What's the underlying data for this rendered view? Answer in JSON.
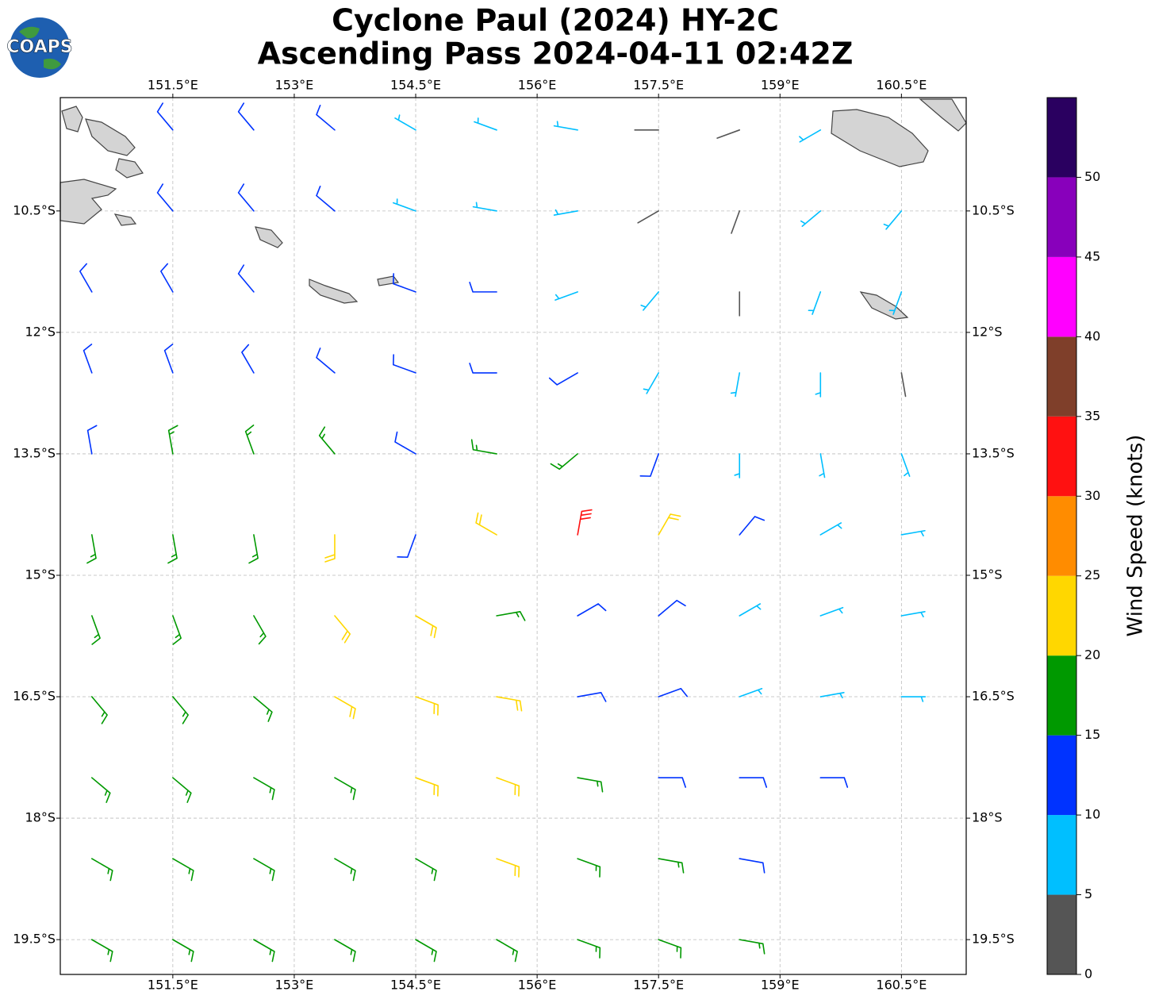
{
  "chart_data": {
    "type": "wind-barbs",
    "title": [
      "Cyclone Paul (2024) HY-2C",
      "Ascending Pass 2024-04-11 02:42Z"
    ],
    "logo": "COAPS",
    "xlim": [
      150.11,
      161.3
    ],
    "ylim": [
      -19.93,
      -9.1
    ],
    "xticks": [
      {
        "value": 151.5,
        "label": "151.5°E"
      },
      {
        "value": 153,
        "label": "153°E"
      },
      {
        "value": 154.5,
        "label": "154.5°E"
      },
      {
        "value": 156,
        "label": "156°E"
      },
      {
        "value": 157.5,
        "label": "157.5°E"
      },
      {
        "value": 159,
        "label": "159°E"
      },
      {
        "value": 160.5,
        "label": "160.5°E"
      }
    ],
    "yticks": [
      {
        "value": -10.5,
        "label": "10.5°S"
      },
      {
        "value": -12,
        "label": "12°S"
      },
      {
        "value": -13.5,
        "label": "13.5°S"
      },
      {
        "value": -15,
        "label": "15°S"
      },
      {
        "value": -16.5,
        "label": "16.5°S"
      },
      {
        "value": -18,
        "label": "18°S"
      },
      {
        "value": -19.5,
        "label": "19.5°S"
      }
    ],
    "grid": true,
    "lons": [
      150.5,
      151.5,
      152.5,
      153.5,
      154.5,
      155.5,
      156.5,
      157.5,
      158.5,
      159.5,
      160.5
    ],
    "lats": [
      -9.5,
      -10.5,
      -11.5,
      -12.5,
      -13.5,
      -14.5,
      -15.5,
      -16.5,
      -17.5,
      -18.5,
      -19.5
    ],
    "speed": [
      [
        null,
        12,
        13,
        12,
        8,
        8,
        7,
        4,
        3,
        9,
        null
      ],
      [
        null,
        12,
        13,
        12,
        9,
        8,
        7,
        4,
        3,
        8,
        8
      ],
      [
        12,
        12,
        13,
        null,
        12,
        12,
        9,
        7,
        3,
        8,
        8
      ],
      [
        12,
        13,
        14,
        12,
        12,
        13,
        12,
        8,
        8,
        8,
        4
      ],
      [
        13,
        17,
        17,
        17,
        12,
        16,
        18,
        12,
        8,
        8,
        8
      ],
      [
        17,
        17,
        18,
        22,
        13,
        22,
        32,
        22,
        12,
        8,
        8
      ],
      [
        17,
        17,
        18,
        22,
        22,
        18,
        13,
        12,
        8,
        8,
        8
      ],
      [
        17,
        17,
        17,
        22,
        22,
        20,
        13,
        12,
        9,
        8,
        9
      ],
      [
        17,
        17,
        17,
        18,
        22,
        22,
        19,
        14,
        12,
        10,
        null
      ],
      [
        17,
        17,
        17,
        17,
        18,
        20,
        19,
        17,
        14,
        null,
        null
      ],
      [
        16,
        16,
        17,
        17,
        17,
        17,
        17,
        16,
        17,
        null,
        null
      ]
    ],
    "direction": [
      [
        null,
        320,
        320,
        310,
        300,
        290,
        280,
        270,
        250,
        240,
        null
      ],
      [
        null,
        320,
        320,
        310,
        290,
        280,
        260,
        240,
        200,
        230,
        220
      ],
      [
        330,
        330,
        320,
        null,
        290,
        270,
        250,
        220,
        180,
        200,
        200
      ],
      [
        340,
        340,
        330,
        310,
        290,
        270,
        240,
        210,
        190,
        180,
        170
      ],
      [
        350,
        350,
        340,
        320,
        300,
        280,
        230,
        200,
        180,
        170,
        160
      ],
      [
        170,
        170,
        170,
        180,
        200,
        300,
        10,
        30,
        40,
        60,
        80
      ],
      [
        160,
        160,
        150,
        140,
        120,
        80,
        60,
        50,
        60,
        70,
        80
      ],
      [
        140,
        140,
        130,
        120,
        110,
        100,
        80,
        70,
        70,
        80,
        90
      ],
      [
        130,
        130,
        120,
        120,
        110,
        110,
        100,
        90,
        90,
        90,
        null
      ],
      [
        120,
        120,
        120,
        120,
        120,
        110,
        110,
        100,
        100,
        null,
        null
      ],
      [
        120,
        120,
        120,
        120,
        120,
        120,
        110,
        110,
        100,
        null,
        null
      ]
    ],
    "colorbar": {
      "label": "Wind Speed (knots)",
      "lim": [
        0,
        55
      ],
      "ticks": [
        0,
        5,
        10,
        15,
        20,
        25,
        30,
        35,
        40,
        45,
        50
      ],
      "colors": [
        "#555555",
        "#00bfff",
        "#0033ff",
        "#009900",
        "#ffd700",
        "#ff8c00",
        "#ff1111",
        "#7f3f2a",
        "#ff00ff",
        "#8800bb",
        "#2a0060"
      ]
    }
  }
}
